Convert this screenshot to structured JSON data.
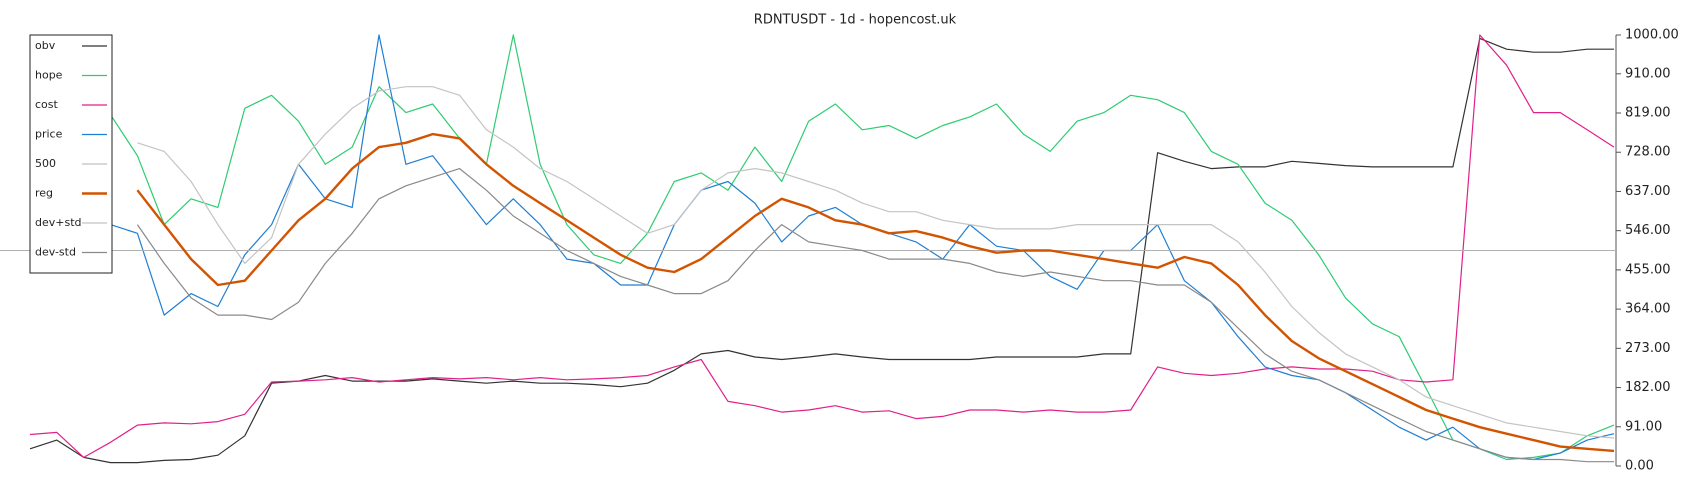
{
  "chart_data": {
    "type": "line",
    "title": "RDNTUSDT - 1d - hopencost.uk",
    "ylim": [
      0,
      1000
    ],
    "yticks": [
      {
        "value": 0,
        "label": "0.00"
      },
      {
        "value": 91,
        "label": "91.00"
      },
      {
        "value": 182,
        "label": "182.00"
      },
      {
        "value": 273,
        "label": "273.00"
      },
      {
        "value": 364,
        "label": "364.00"
      },
      {
        "value": 455,
        "label": "455.00"
      },
      {
        "value": 546,
        "label": "546.00"
      },
      {
        "value": 637,
        "label": "637.00"
      },
      {
        "value": 728,
        "label": "728.00"
      },
      {
        "value": 819,
        "label": "819.00"
      },
      {
        "value": 910,
        "label": "910.00"
      },
      {
        "value": 1000,
        "label": "1000.00"
      }
    ],
    "legend": "upper-left",
    "series": [
      {
        "name": "obv",
        "color": "#333333",
        "line_width": 1.2,
        "values": [
          40,
          60,
          20,
          8,
          8,
          13,
          15,
          25,
          70,
          192,
          197,
          210,
          197,
          197,
          197,
          202,
          197,
          192,
          197,
          192,
          192,
          189,
          184,
          192,
          222,
          260,
          268,
          253,
          247,
          253,
          260,
          253,
          247,
          247,
          247,
          247,
          253,
          253,
          253,
          253,
          260,
          260,
          727,
          707,
          690,
          694,
          694,
          707,
          702,
          697,
          694,
          694,
          694,
          694,
          992,
          967,
          960,
          960,
          967,
          967
        ]
      },
      {
        "name": "hope",
        "color": "#2ecc71",
        "line_width": 1.2,
        "values": [
          null,
          null,
          null,
          815,
          720,
          560,
          620,
          600,
          830,
          860,
          800,
          700,
          740,
          880,
          820,
          840,
          760,
          700,
          1000,
          700,
          560,
          490,
          470,
          540,
          660,
          680,
          640,
          740,
          660,
          800,
          840,
          780,
          790,
          760,
          790,
          810,
          840,
          770,
          730,
          800,
          820,
          860,
          850,
          820,
          730,
          700,
          610,
          570,
          490,
          390,
          330,
          300,
          180,
          60,
          40,
          15,
          20,
          30,
          70,
          95
        ]
      },
      {
        "name": "cost",
        "color": "#e0218a",
        "line_width": 1.2,
        "values": [
          73,
          78,
          20,
          55,
          95,
          100,
          98,
          103,
          120,
          195,
          197,
          200,
          205,
          195,
          200,
          205,
          202,
          205,
          200,
          205,
          200,
          202,
          205,
          210,
          230,
          247,
          150,
          140,
          125,
          130,
          140,
          125,
          128,
          110,
          115,
          130,
          130,
          125,
          130,
          125,
          125,
          130,
          230,
          215,
          210,
          215,
          225,
          230,
          225,
          225,
          220,
          200,
          195,
          200,
          1000,
          930,
          820,
          820,
          780,
          740
        ]
      },
      {
        "name": "price",
        "color": "#1f7fd4",
        "line_width": 1.2,
        "values": [
          null,
          null,
          null,
          560,
          540,
          350,
          400,
          370,
          490,
          560,
          700,
          620,
          600,
          1000,
          700,
          720,
          640,
          560,
          620,
          560,
          480,
          470,
          420,
          420,
          560,
          640,
          660,
          610,
          520,
          580,
          600,
          560,
          540,
          520,
          480,
          560,
          510,
          500,
          440,
          410,
          500,
          500,
          560,
          430,
          380,
          300,
          230,
          210,
          200,
          170,
          130,
          90,
          60,
          90,
          40,
          20,
          15,
          30,
          60,
          75
        ]
      },
      {
        "name": "500",
        "color": "#b0b0b0",
        "line_width": 1,
        "values": [
          500,
          500,
          500,
          500,
          500,
          500,
          500,
          500,
          500,
          500,
          500,
          500,
          500,
          500,
          500,
          500,
          500,
          500,
          500,
          500,
          500,
          500,
          500,
          500,
          500,
          500,
          500,
          500,
          500,
          500,
          500,
          500,
          500,
          500,
          500,
          500,
          500,
          500,
          500,
          500,
          500,
          500,
          500,
          500,
          500,
          500,
          500,
          500,
          500,
          500,
          500,
          500,
          500,
          500,
          500,
          500,
          500,
          500,
          500,
          500
        ]
      },
      {
        "name": "reg",
        "color": "#d35400",
        "line_width": 2.4,
        "values": [
          null,
          null,
          null,
          null,
          640,
          560,
          480,
          420,
          430,
          500,
          570,
          620,
          690,
          740,
          750,
          770,
          760,
          700,
          650,
          610,
          570,
          530,
          490,
          460,
          450,
          480,
          530,
          580,
          620,
          600,
          570,
          560,
          540,
          545,
          530,
          510,
          495,
          500,
          500,
          490,
          480,
          470,
          460,
          485,
          470,
          420,
          350,
          290,
          250,
          220,
          190,
          160,
          130,
          110,
          90,
          75,
          60,
          45,
          40,
          35
        ]
      },
      {
        "name": "dev+std",
        "color": "#c4c4c4",
        "line_width": 1.2,
        "values": [
          null,
          null,
          null,
          null,
          750,
          730,
          660,
          560,
          470,
          530,
          700,
          770,
          830,
          870,
          880,
          880,
          860,
          780,
          740,
          690,
          660,
          620,
          580,
          540,
          560,
          640,
          680,
          690,
          680,
          660,
          640,
          610,
          590,
          590,
          570,
          560,
          550,
          550,
          550,
          560,
          560,
          560,
          560,
          560,
          560,
          520,
          450,
          370,
          310,
          260,
          230,
          200,
          160,
          140,
          120,
          100,
          90,
          80,
          70,
          65
        ]
      },
      {
        "name": "dev-std",
        "color": "#8a8a8a",
        "line_width": 1.2,
        "values": [
          null,
          null,
          null,
          null,
          560,
          470,
          390,
          350,
          350,
          340,
          380,
          470,
          540,
          620,
          650,
          670,
          690,
          640,
          580,
          540,
          500,
          470,
          440,
          420,
          400,
          400,
          430,
          500,
          560,
          520,
          510,
          500,
          480,
          480,
          480,
          470,
          450,
          440,
          450,
          440,
          430,
          430,
          420,
          420,
          380,
          320,
          260,
          220,
          200,
          170,
          140,
          110,
          80,
          60,
          40,
          20,
          15,
          15,
          10,
          10
        ]
      }
    ]
  }
}
